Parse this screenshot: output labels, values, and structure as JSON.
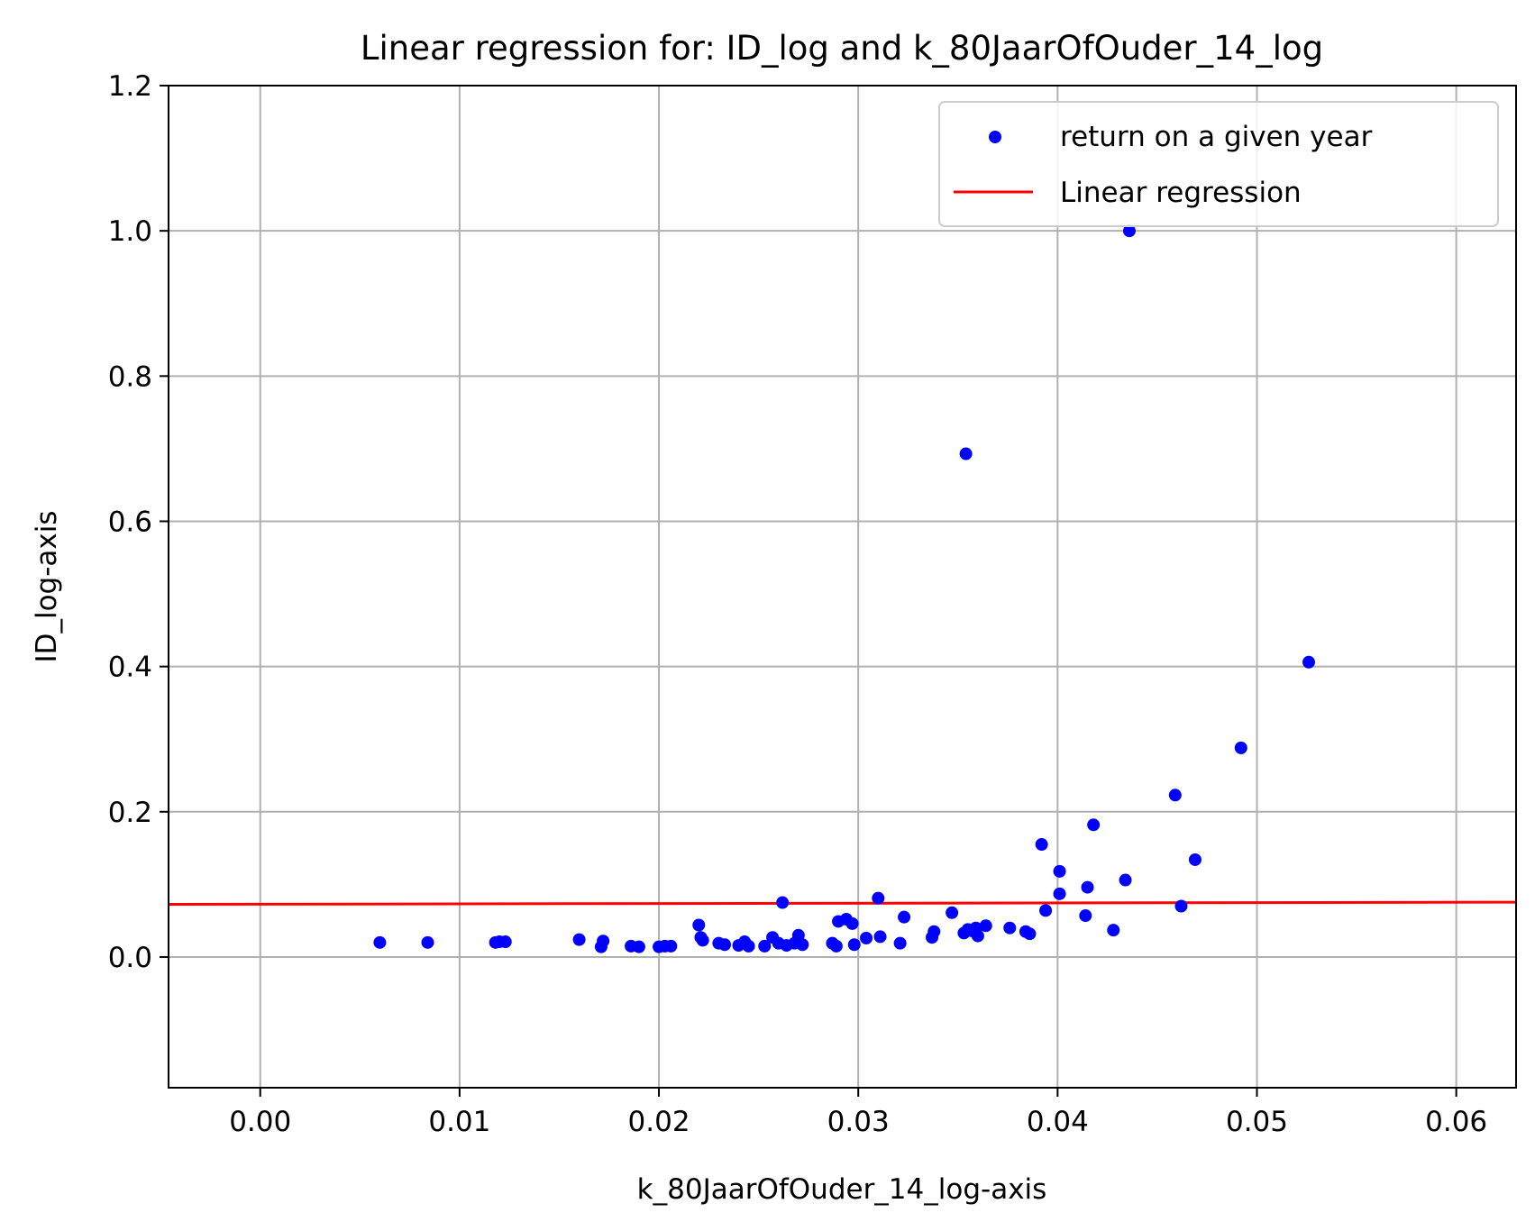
{
  "chart_data": {
    "type": "scatter",
    "title": "Linear regression for: ID_log and k_80JaarOfOuder_14_log",
    "xlabel": "k_80JaarOfOuder_14_log-axis",
    "ylabel": "ID_log-axis",
    "xlim": [
      -0.0046,
      0.063
    ],
    "ylim": [
      -0.18,
      1.2
    ],
    "xticks": [
      0.0,
      0.01,
      0.02,
      0.03,
      0.04,
      0.05,
      0.06
    ],
    "xtick_labels": [
      "0.00",
      "0.01",
      "0.02",
      "0.03",
      "0.04",
      "0.05",
      "0.06"
    ],
    "yticks": [
      0.0,
      0.2,
      0.4,
      0.6,
      0.8,
      1.0,
      1.2
    ],
    "ytick_labels": [
      "0.0",
      "0.2",
      "0.4",
      "0.6",
      "0.8",
      "1.0",
      "1.2"
    ],
    "grid": true,
    "legend_position": "top-right",
    "series": [
      {
        "name": "return on a given year",
        "kind": "scatter",
        "color": "#0000ff",
        "points": [
          [
            0.006,
            0.02
          ],
          [
            0.0084,
            0.02
          ],
          [
            0.0118,
            0.02
          ],
          [
            0.012,
            0.021
          ],
          [
            0.0123,
            0.021
          ],
          [
            0.016,
            0.024
          ],
          [
            0.0171,
            0.014
          ],
          [
            0.0172,
            0.022
          ],
          [
            0.0186,
            0.015
          ],
          [
            0.019,
            0.014
          ],
          [
            0.02,
            0.014
          ],
          [
            0.0203,
            0.015
          ],
          [
            0.0206,
            0.015
          ],
          [
            0.022,
            0.044
          ],
          [
            0.0221,
            0.027
          ],
          [
            0.0222,
            0.023
          ],
          [
            0.023,
            0.019
          ],
          [
            0.0233,
            0.017
          ],
          [
            0.024,
            0.016
          ],
          [
            0.0243,
            0.021
          ],
          [
            0.0245,
            0.015
          ],
          [
            0.0253,
            0.015
          ],
          [
            0.0257,
            0.027
          ],
          [
            0.026,
            0.019
          ],
          [
            0.0262,
            0.075
          ],
          [
            0.0264,
            0.016
          ],
          [
            0.0268,
            0.019
          ],
          [
            0.027,
            0.03
          ],
          [
            0.0272,
            0.017
          ],
          [
            0.0287,
            0.019
          ],
          [
            0.0289,
            0.015
          ],
          [
            0.029,
            0.049
          ],
          [
            0.0294,
            0.052
          ],
          [
            0.0297,
            0.046
          ],
          [
            0.0298,
            0.017
          ],
          [
            0.0304,
            0.026
          ],
          [
            0.031,
            0.081
          ],
          [
            0.0311,
            0.028
          ],
          [
            0.0321,
            0.019
          ],
          [
            0.0323,
            0.055
          ],
          [
            0.0337,
            0.027
          ],
          [
            0.0338,
            0.035
          ],
          [
            0.0347,
            0.061
          ],
          [
            0.0353,
            0.033
          ],
          [
            0.0354,
            0.693
          ],
          [
            0.0355,
            0.038
          ],
          [
            0.0357,
            0.036
          ],
          [
            0.0359,
            0.04
          ],
          [
            0.036,
            0.029
          ],
          [
            0.0364,
            0.043
          ],
          [
            0.0376,
            0.04
          ],
          [
            0.0384,
            0.035
          ],
          [
            0.0386,
            0.032
          ],
          [
            0.0392,
            0.155
          ],
          [
            0.0394,
            0.064
          ],
          [
            0.0401,
            0.118
          ],
          [
            0.0401,
            0.087
          ],
          [
            0.0414,
            0.057
          ],
          [
            0.0415,
            0.096
          ],
          [
            0.0418,
            0.182
          ],
          [
            0.0428,
            0.037
          ],
          [
            0.0434,
            0.106
          ],
          [
            0.0436,
            1.0
          ],
          [
            0.0459,
            0.223
          ],
          [
            0.0462,
            0.07
          ],
          [
            0.0469,
            0.134
          ],
          [
            0.0492,
            0.288
          ],
          [
            0.0526,
            0.406
          ]
        ]
      },
      {
        "name": "Linear regression",
        "kind": "line",
        "color": "#ff0000",
        "points": [
          [
            -0.0046,
            0.0725
          ],
          [
            0.063,
            0.0755
          ]
        ]
      }
    ]
  }
}
